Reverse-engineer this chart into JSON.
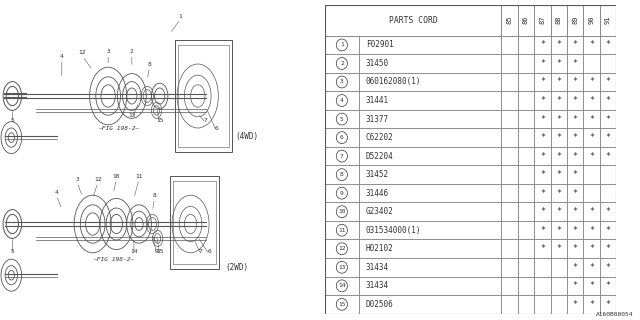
{
  "figure_code": "A160B00054",
  "bg_color": "#ffffff",
  "table": {
    "col_headers": [
      "85",
      "86",
      "87",
      "88",
      "89",
      "90",
      "91"
    ],
    "rows": [
      {
        "num": "1",
        "part": "F02901",
        "cols": [
          false,
          false,
          true,
          true,
          true,
          true,
          true
        ]
      },
      {
        "num": "2",
        "part": "31450",
        "cols": [
          false,
          false,
          true,
          true,
          true,
          false,
          false
        ]
      },
      {
        "num": "3",
        "part": "060162080(1)",
        "cols": [
          false,
          false,
          true,
          true,
          true,
          true,
          true
        ]
      },
      {
        "num": "4",
        "part": "31441",
        "cols": [
          false,
          false,
          true,
          true,
          true,
          true,
          true
        ]
      },
      {
        "num": "5",
        "part": "31377",
        "cols": [
          false,
          false,
          true,
          true,
          true,
          true,
          true
        ]
      },
      {
        "num": "6",
        "part": "C62202",
        "cols": [
          false,
          false,
          true,
          true,
          true,
          true,
          true
        ]
      },
      {
        "num": "7",
        "part": "D52204",
        "cols": [
          false,
          false,
          true,
          true,
          true,
          true,
          true
        ]
      },
      {
        "num": "8",
        "part": "31452",
        "cols": [
          false,
          false,
          true,
          true,
          true,
          false,
          false
        ]
      },
      {
        "num": "9",
        "part": "31446",
        "cols": [
          false,
          false,
          true,
          true,
          true,
          false,
          false
        ]
      },
      {
        "num": "10",
        "part": "G23402",
        "cols": [
          false,
          false,
          true,
          true,
          true,
          true,
          true
        ]
      },
      {
        "num": "11",
        "part": "031534000(1)",
        "cols": [
          false,
          false,
          true,
          true,
          true,
          true,
          true
        ]
      },
      {
        "num": "12",
        "part": "H02102",
        "cols": [
          false,
          false,
          true,
          true,
          true,
          true,
          true
        ]
      },
      {
        "num": "13",
        "part": "31434",
        "cols": [
          false,
          false,
          false,
          false,
          true,
          true,
          true
        ]
      },
      {
        "num": "14",
        "part": "31434",
        "cols": [
          false,
          false,
          false,
          false,
          true,
          true,
          true
        ]
      },
      {
        "num": "15",
        "part": "D02506",
        "cols": [
          false,
          false,
          false,
          false,
          true,
          true,
          true
        ]
      }
    ]
  },
  "line_color": "#888888",
  "text_color": "#333333",
  "star_color": "#333333",
  "draw_color": "#666666"
}
